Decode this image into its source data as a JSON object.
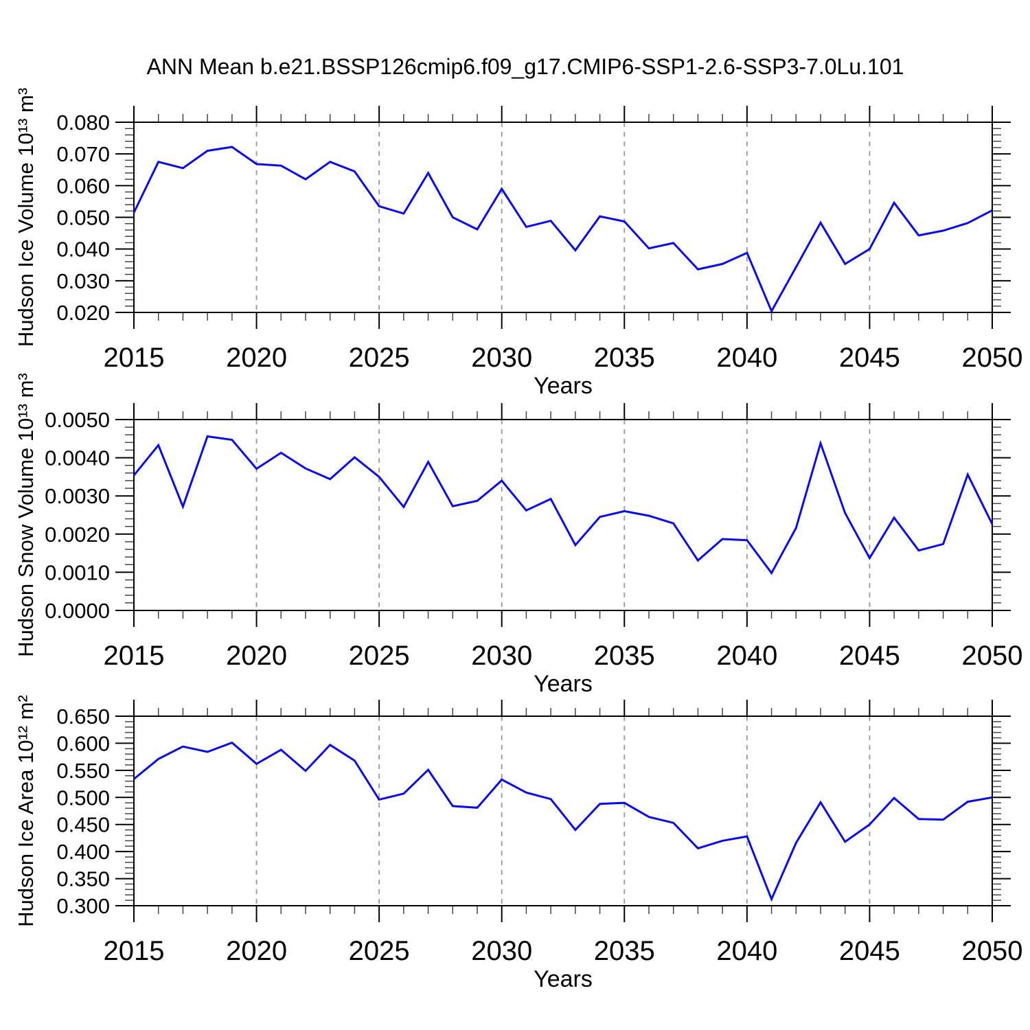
{
  "title": "ANN Mean b.e21.BSSP126cmip6.f09_g17.CMIP6-SSP1-2.6-SSP3-7.0Lu.101",
  "colors": {
    "line": "#0a0af0",
    "grid": "#999999",
    "frame": "#000000",
    "minor_tick": "#444444"
  },
  "chart_data": {
    "type": "line",
    "title": "ANN Mean b.e21.BSSP126cmip6.f09_g17.CMIP6-SSP1-2.6-SSP3-7.0Lu.101",
    "xlabel": "Years",
    "x": [
      2015,
      2016,
      2017,
      2018,
      2019,
      2020,
      2021,
      2022,
      2023,
      2024,
      2025,
      2026,
      2027,
      2028,
      2029,
      2030,
      2031,
      2032,
      2033,
      2034,
      2035,
      2036,
      2037,
      2038,
      2039,
      2040,
      2041,
      2042,
      2043,
      2044,
      2045,
      2046,
      2047,
      2048,
      2049,
      2050
    ],
    "xlim": [
      2015,
      2050
    ],
    "x_major_step": 5,
    "x_minor_step": 1,
    "x_major_labels": [
      "2015",
      "2020",
      "2025",
      "2030",
      "2035",
      "2040",
      "2045",
      "2050"
    ],
    "grid": "vertical-dashed-at-interior-majors",
    "legend": "none",
    "panels": [
      {
        "ylabel": "Hudson Ice Volume 10¹³ m³",
        "ylim": [
          0.02,
          0.08
        ],
        "y_major_step": 0.01,
        "y_minor_step": 0.002,
        "y_decimals": 3,
        "y_major_labels": [
          "0.020",
          "0.030",
          "0.040",
          "0.050",
          "0.060",
          "0.070",
          "0.080"
        ],
        "values": [
          0.0515,
          0.0675,
          0.0655,
          0.071,
          0.0722,
          0.0668,
          0.0663,
          0.062,
          0.0675,
          0.0645,
          0.0535,
          0.0512,
          0.064,
          0.05,
          0.0462,
          0.059,
          0.047,
          0.0489,
          0.0396,
          0.0503,
          0.0487,
          0.0402,
          0.0419,
          0.0336,
          0.0353,
          0.0388,
          0.0204,
          0.0343,
          0.0483,
          0.0353,
          0.04,
          0.0546,
          0.0443,
          0.0458,
          0.0482,
          0.0522
        ]
      },
      {
        "ylabel": "Hudson Snow Volume 10¹³ m³",
        "ylim": [
          0.0,
          0.005
        ],
        "y_major_step": 0.001,
        "y_minor_step": 0.0002,
        "y_decimals": 4,
        "y_major_labels": [
          "0.0000",
          "0.0010",
          "0.0020",
          "0.0030",
          "0.0040",
          "0.0050"
        ],
        "values": [
          0.00354,
          0.00433,
          0.00272,
          0.00456,
          0.00447,
          0.00371,
          0.00413,
          0.00372,
          0.00344,
          0.00401,
          0.0035,
          0.00271,
          0.00389,
          0.00273,
          0.00287,
          0.0034,
          0.00262,
          0.00292,
          0.00171,
          0.00245,
          0.0026,
          0.00248,
          0.00228,
          0.00131,
          0.00187,
          0.00184,
          0.00098,
          0.00216,
          0.00438,
          0.00255,
          0.00137,
          0.00243,
          0.00157,
          0.00174,
          0.00356,
          0.00226
        ]
      },
      {
        "ylabel": "Hudson Ice Area 10¹² m²",
        "ylim": [
          0.3,
          0.65
        ],
        "y_major_step": 0.05,
        "y_minor_step": 0.01,
        "y_decimals": 3,
        "y_major_labels": [
          "0.300",
          "0.350",
          "0.400",
          "0.450",
          "0.500",
          "0.550",
          "0.600",
          "0.650"
        ],
        "values": [
          0.534,
          0.571,
          0.594,
          0.584,
          0.601,
          0.562,
          0.588,
          0.549,
          0.597,
          0.568,
          0.496,
          0.507,
          0.551,
          0.484,
          0.481,
          0.533,
          0.509,
          0.497,
          0.44,
          0.488,
          0.49,
          0.464,
          0.453,
          0.406,
          0.42,
          0.428,
          0.312,
          0.416,
          0.491,
          0.418,
          0.45,
          0.499,
          0.46,
          0.459,
          0.492,
          0.5
        ]
      }
    ]
  }
}
